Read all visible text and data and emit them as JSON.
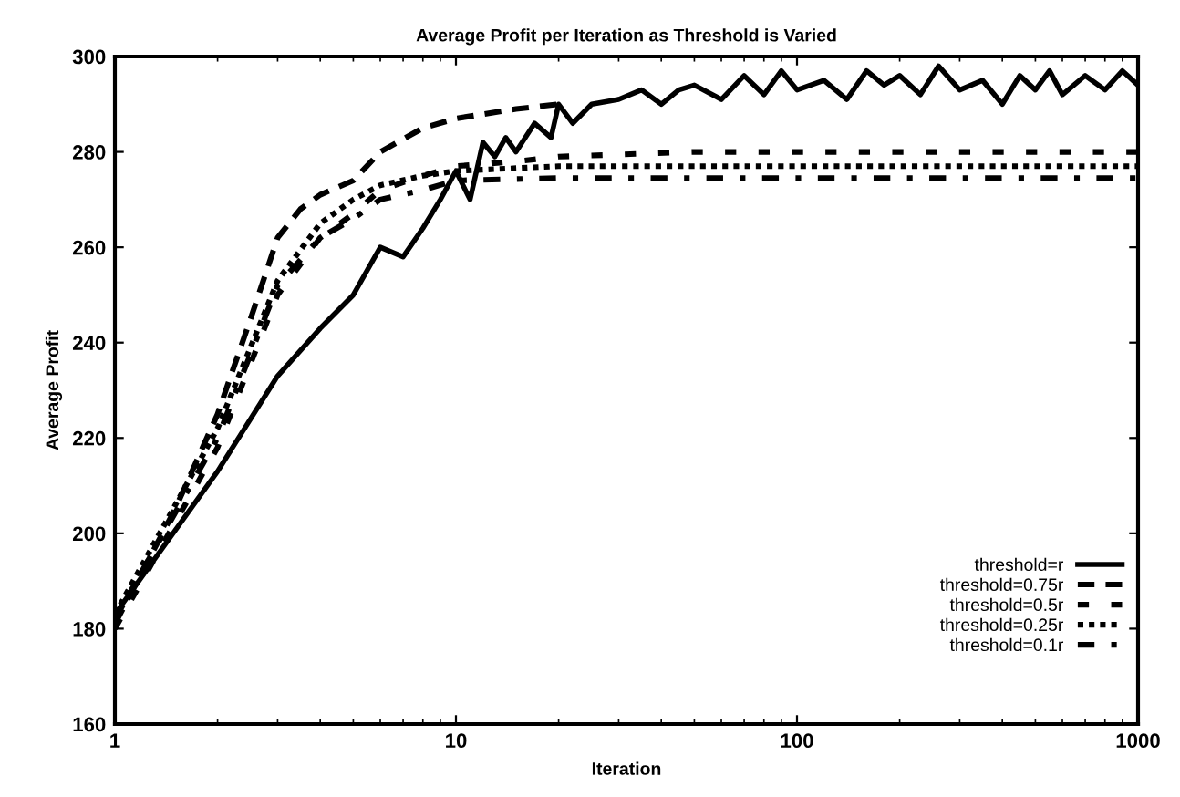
{
  "chart_data": {
    "type": "line",
    "title": "Average Profit per Iteration as Threshold is Varied",
    "xlabel": "Iteration",
    "ylabel": "Average Profit",
    "log": "x",
    "xlim": [
      1,
      1000
    ],
    "ylim": [
      160,
      300
    ],
    "xticks": [
      1,
      10,
      100,
      1000
    ],
    "yticks": [
      160,
      180,
      200,
      220,
      240,
      260,
      280,
      300
    ],
    "grid": false,
    "legend": "bottom right",
    "marker": "none",
    "series": [
      {
        "name": "threshold=r",
        "color": "#000000",
        "line_style": "solid",
        "x": [
          1,
          2,
          3,
          4,
          5,
          6,
          7,
          8,
          9,
          10,
          11,
          12,
          13,
          14,
          15,
          17,
          19,
          20,
          22,
          25,
          30,
          35,
          40,
          45,
          50,
          60,
          70,
          80,
          90,
          100,
          120,
          140,
          160,
          180,
          200,
          230,
          260,
          300,
          350,
          400,
          450,
          500,
          550,
          600,
          700,
          800,
          900,
          1000
        ],
        "values": [
          183,
          213,
          233,
          243,
          250,
          260,
          258,
          264,
          270,
          276,
          270,
          282,
          279,
          283,
          280,
          286,
          283,
          290,
          286,
          290,
          291,
          293,
          290,
          293,
          294,
          291,
          296,
          292,
          297,
          293,
          295,
          291,
          297,
          294,
          296,
          292,
          298,
          293,
          295,
          290,
          296,
          293,
          297,
          292,
          296,
          293,
          297,
          294
        ]
      },
      {
        "name": "threshold=0.75r",
        "color": "#000000",
        "line_style": "dashed",
        "x": [
          1,
          1.5,
          2,
          2.5,
          3,
          3.5,
          4,
          5,
          6,
          8,
          10,
          15,
          20
        ],
        "values": [
          181,
          205,
          225,
          245,
          262,
          268,
          271,
          274,
          280,
          285,
          287,
          289,
          290
        ]
      },
      {
        "name": "threshold=0.5r",
        "color": "#000000",
        "line_style": "wide_dashed",
        "x": [
          1,
          2,
          3,
          4,
          5,
          6,
          8,
          10,
          15,
          20,
          50,
          1000
        ],
        "values": [
          180,
          218,
          250,
          262,
          267,
          272,
          275,
          277,
          278,
          279,
          280,
          280
        ]
      },
      {
        "name": "threshold=0.25r",
        "color": "#000000",
        "line_style": "dotted",
        "x": [
          1,
          2,
          3,
          4,
          5,
          6,
          8,
          10,
          20,
          1000
        ],
        "values": [
          183,
          222,
          253,
          265,
          270,
          273,
          275,
          276,
          277,
          277
        ]
      },
      {
        "name": "threshold=0.1r",
        "color": "#000000",
        "line_style": "dashdot",
        "x": [
          1,
          2,
          3,
          4,
          5,
          6,
          8,
          10,
          20,
          1000
        ],
        "values": [
          182,
          220,
          252,
          262,
          266,
          270,
          272,
          274,
          274.5,
          274.5
        ]
      }
    ]
  }
}
